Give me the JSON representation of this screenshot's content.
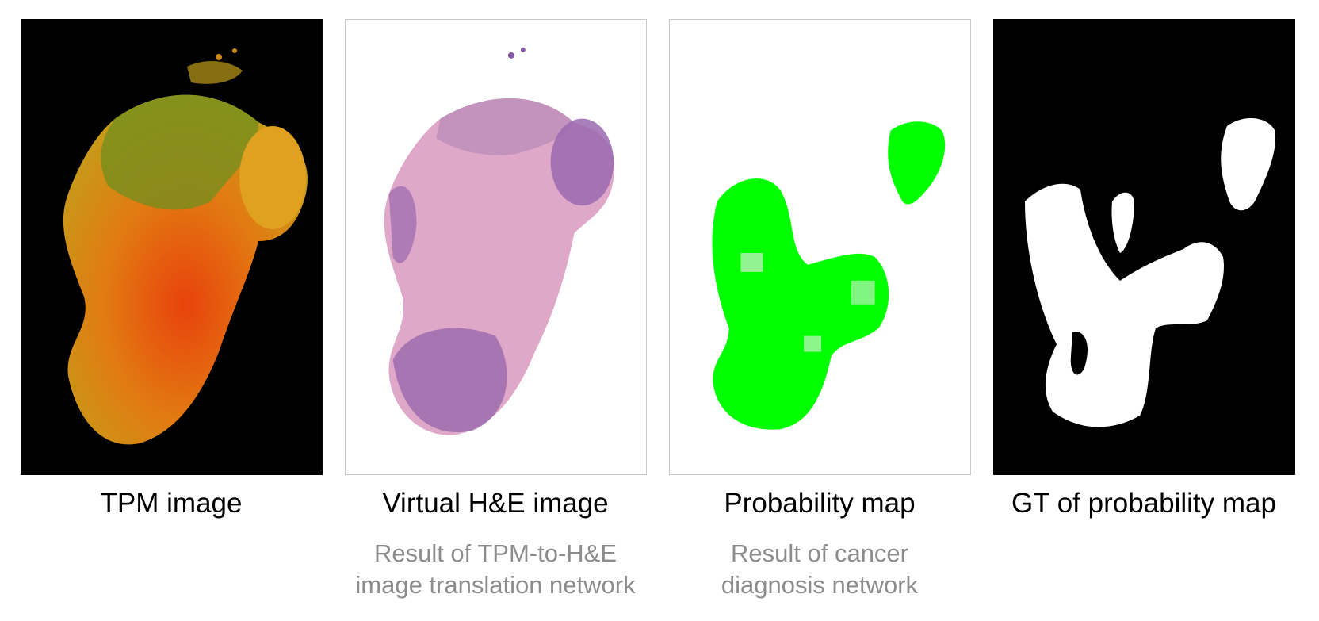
{
  "panels": [
    {
      "caption": "TPM image"
    },
    {
      "caption": "Virtual H&E image",
      "note_lines": [
        "Result of TPM-to-H&E",
        "image translation network"
      ]
    },
    {
      "caption": "Probability map",
      "note_lines": [
        "Result of cancer",
        "diagnosis network"
      ]
    },
    {
      "caption": "GT of probability map"
    }
  ],
  "colors": {
    "tpm_orange": "#e08a10",
    "tpm_red": "#e0400a",
    "tpm_green": "#5f9a1a",
    "he_pink": "#dba3c4",
    "he_purple": "#8a5aa8",
    "prob_green": "#00ff00",
    "gt_white": "#ffffff"
  }
}
